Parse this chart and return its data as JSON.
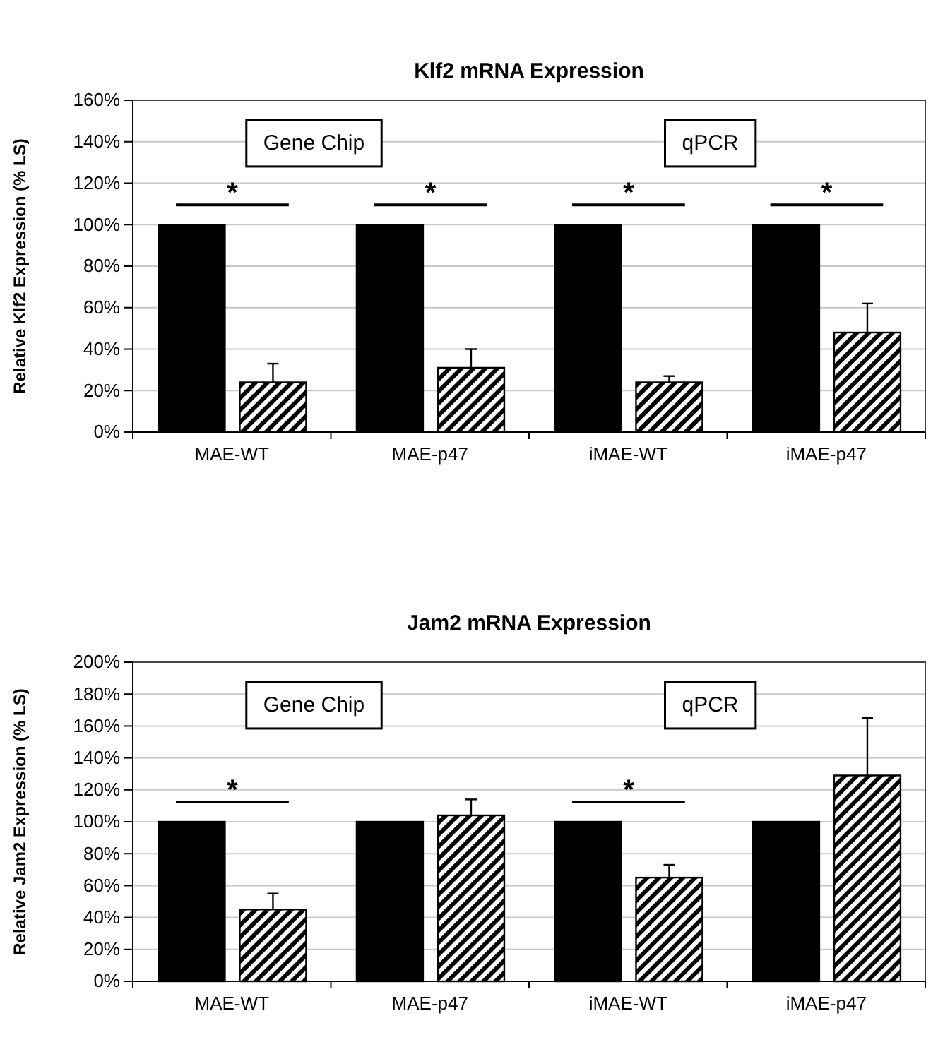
{
  "chart_data": [
    {
      "type": "bar",
      "title": "Klf2 mRNA Expression",
      "ylabel": "Relative Klf2 Expression (% LS)",
      "categories": [
        "MAE-WT",
        "MAE-p47",
        "iMAE-WT",
        "iMAE-p47"
      ],
      "series": [
        {
          "color": "#000000",
          "values": [
            100,
            100,
            100,
            100
          ]
        },
        {
          "color": "#000000",
          "values": [
            24,
            31,
            24,
            48
          ],
          "errors": [
            [
              24,
              33
            ],
            [
              31,
              40
            ],
            [
              24,
              27
            ],
            [
              48,
              62
            ]
          ]
        }
      ],
      "ylim": [
        0,
        160
      ],
      "yticks": [
        {
          "value": 0,
          "label": "0%"
        },
        {
          "value": 20,
          "label": "20%"
        },
        {
          "value": 40,
          "label": "40%"
        },
        {
          "value": 60,
          "label": "60%"
        },
        {
          "value": 80,
          "label": "80%"
        },
        {
          "value": 100,
          "label": "100%"
        },
        {
          "value": 120,
          "label": "120%"
        },
        {
          "value": 140,
          "label": "140%"
        },
        {
          "value": 160,
          "label": "160%"
        }
      ],
      "grid": "y",
      "annotations": [
        "Gene Chip",
        "qPCR",
        "*",
        "*",
        "*",
        "*"
      ]
    },
    {
      "type": "bar",
      "title": "Jam2 mRNA Expression",
      "ylabel": "Relative Jam2 Expression (% LS)",
      "categories": [
        "MAE-WT",
        "MAE-p47",
        "iMAE-WT",
        "iMAE-p47"
      ],
      "series": [
        {
          "color": "#000000",
          "values": [
            100,
            100,
            100,
            100
          ]
        },
        {
          "color": "#000000",
          "values": [
            45,
            104,
            65,
            129
          ],
          "errors": [
            [
              45,
              55
            ],
            [
              104,
              114
            ],
            [
              65,
              73
            ],
            [
              129,
              165
            ]
          ]
        }
      ],
      "ylim": [
        0,
        200
      ],
      "yticks": [
        {
          "value": 0,
          "label": "0%"
        },
        {
          "value": 20,
          "label": "20%"
        },
        {
          "value": 40,
          "label": "40%"
        },
        {
          "value": 60,
          "label": "60%"
        },
        {
          "value": 80,
          "label": "80%"
        },
        {
          "value": 100,
          "label": "100%"
        },
        {
          "value": 120,
          "label": "120%"
        },
        {
          "value": 140,
          "label": "140%"
        },
        {
          "value": 160,
          "label": "160%"
        },
        {
          "value": 180,
          "label": "180%"
        },
        {
          "value": 200,
          "label": "200%"
        }
      ],
      "grid": "y",
      "annotations": [
        "Gene Chip",
        "qPCR",
        "*",
        "*"
      ]
    }
  ]
}
